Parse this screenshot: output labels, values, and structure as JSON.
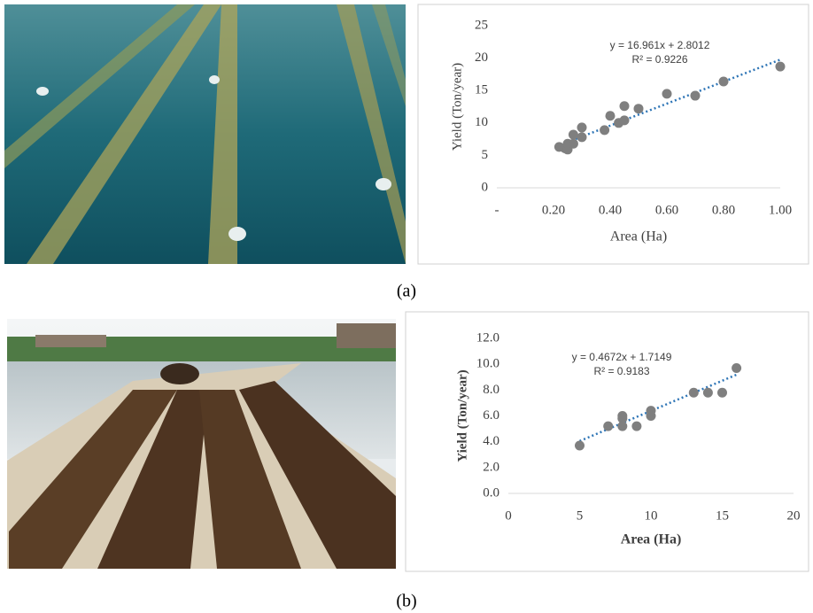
{
  "chart_data": [
    {
      "type": "scatter",
      "panel_label": "(a)",
      "x_label": "Area (Ha)",
      "y_label": "Yield (Ton/year)",
      "x": [
        0.22,
        0.24,
        0.25,
        0.25,
        0.27,
        0.27,
        0.3,
        0.3,
        0.38,
        0.4,
        0.43,
        0.45,
        0.45,
        0.5,
        0.6,
        0.7,
        0.8,
        1.0
      ],
      "values": [
        6.3,
        6.1,
        5.9,
        6.8,
        6.8,
        8.2,
        7.8,
        9.3,
        8.9,
        11.1,
        10.0,
        10.4,
        12.6,
        12.2,
        14.5,
        14.2,
        16.4,
        18.7
      ],
      "color": "#7f7f7f",
      "trendline": {
        "slope": 16.961,
        "intercept": 2.8012,
        "equation": "y = 16.961x + 2.8012",
        "r_squared": "R² = 0.9226",
        "color": "#2e75b6"
      },
      "xlim": [
        0,
        1.0
      ],
      "xticks": [
        {
          "value": 0,
          "label": "-"
        },
        {
          "value": 0.2,
          "label": "0.20"
        },
        {
          "value": 0.4,
          "label": "0.40"
        },
        {
          "value": 0.6,
          "label": "0.60"
        },
        {
          "value": 0.8,
          "label": "0.80"
        },
        {
          "value": 1.0,
          "label": "1.00"
        }
      ],
      "ylim": [
        0,
        25
      ],
      "yticks": [
        0,
        5,
        10,
        15,
        20,
        25
      ]
    },
    {
      "type": "scatter",
      "panel_label": "(b)",
      "x_label": "Area (Ha)",
      "y_label": "Yield (Ton/year)",
      "x": [
        5,
        7,
        8,
        8,
        8,
        9,
        10,
        10,
        13,
        14,
        15,
        16
      ],
      "values": [
        3.7,
        5.2,
        6.0,
        5.8,
        5.2,
        5.2,
        6.4,
        6.0,
        7.8,
        7.8,
        7.8,
        9.7
      ],
      "color": "#7f7f7f",
      "trendline": {
        "slope": 0.4672,
        "intercept": 1.7149,
        "equation": "y = 0.4672x + 1.7149",
        "r_squared": "R² = 0.9183",
        "color": "#2e75b6"
      },
      "xlim": [
        0,
        20
      ],
      "xticks": [
        0,
        5,
        10,
        15,
        20
      ],
      "ylim": [
        0,
        12
      ],
      "yticks": [
        {
          "value": 0,
          "label": "0.0"
        },
        {
          "value": 2,
          "label": "2.0"
        },
        {
          "value": 4,
          "label": "4.0"
        },
        {
          "value": 6,
          "label": "6.0"
        },
        {
          "value": 8,
          "label": "8.0"
        },
        {
          "value": 10,
          "label": "10.0"
        },
        {
          "value": 12,
          "label": "12.0"
        }
      ]
    }
  ]
}
